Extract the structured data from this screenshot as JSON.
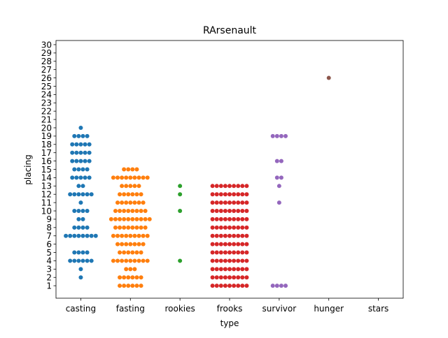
{
  "chart_data": {
    "type": "scatter",
    "subtype": "swarm",
    "title": "RArsenault",
    "xlabel": "type",
    "ylabel": "placing",
    "categories": [
      "casting",
      "fasting",
      "rookies",
      "frooks",
      "survivor",
      "hunger",
      "stars"
    ],
    "ylim": [
      0,
      30
    ],
    "yticks": [
      1,
      2,
      3,
      4,
      5,
      6,
      7,
      8,
      9,
      10,
      11,
      12,
      13,
      14,
      15,
      16,
      17,
      18,
      19,
      20,
      21,
      22,
      23,
      24,
      25,
      26,
      27,
      28,
      29,
      30
    ],
    "grid": false,
    "series": [
      {
        "name": "casting",
        "color": "#1f77b4",
        "points": [
          {
            "y": 2,
            "count": 1
          },
          {
            "y": 3,
            "count": 1
          },
          {
            "y": 4,
            "count": 6
          },
          {
            "y": 5,
            "count": 4
          },
          {
            "y": 7,
            "count": 8
          },
          {
            "y": 8,
            "count": 4
          },
          {
            "y": 9,
            "count": 2
          },
          {
            "y": 10,
            "count": 4
          },
          {
            "y": 11,
            "count": 1
          },
          {
            "y": 12,
            "count": 6
          },
          {
            "y": 13,
            "count": 2
          },
          {
            "y": 14,
            "count": 5
          },
          {
            "y": 15,
            "count": 4
          },
          {
            "y": 16,
            "count": 5
          },
          {
            "y": 17,
            "count": 5
          },
          {
            "y": 18,
            "count": 5
          },
          {
            "y": 19,
            "count": 4
          },
          {
            "y": 20,
            "count": 1
          }
        ]
      },
      {
        "name": "fasting",
        "color": "#ff7f0e",
        "points": [
          {
            "y": 1,
            "count": 6
          },
          {
            "y": 2,
            "count": 6
          },
          {
            "y": 3,
            "count": 3
          },
          {
            "y": 4,
            "count": 9
          },
          {
            "y": 5,
            "count": 6
          },
          {
            "y": 6,
            "count": 7
          },
          {
            "y": 7,
            "count": 9
          },
          {
            "y": 8,
            "count": 8
          },
          {
            "y": 9,
            "count": 10
          },
          {
            "y": 10,
            "count": 8
          },
          {
            "y": 11,
            "count": 7
          },
          {
            "y": 12,
            "count": 6
          },
          {
            "y": 13,
            "count": 5
          },
          {
            "y": 14,
            "count": 9
          },
          {
            "y": 15,
            "count": 4
          }
        ]
      },
      {
        "name": "rookies",
        "color": "#2ca02c",
        "points": [
          {
            "y": 4,
            "count": 1
          },
          {
            "y": 10,
            "count": 1
          },
          {
            "y": 12,
            "count": 1
          },
          {
            "y": 13,
            "count": 1
          }
        ]
      },
      {
        "name": "frooks",
        "color": "#d62728",
        "points": [
          {
            "y": 1,
            "count": 9
          },
          {
            "y": 2,
            "count": 9
          },
          {
            "y": 3,
            "count": 9
          },
          {
            "y": 4,
            "count": 9
          },
          {
            "y": 5,
            "count": 9
          },
          {
            "y": 6,
            "count": 9
          },
          {
            "y": 7,
            "count": 9
          },
          {
            "y": 8,
            "count": 9
          },
          {
            "y": 9,
            "count": 9
          },
          {
            "y": 10,
            "count": 9
          },
          {
            "y": 11,
            "count": 9
          },
          {
            "y": 12,
            "count": 9
          },
          {
            "y": 13,
            "count": 9
          }
        ]
      },
      {
        "name": "survivor",
        "color": "#9467bd",
        "points": [
          {
            "y": 1,
            "count": 4
          },
          {
            "y": 11,
            "count": 1
          },
          {
            "y": 13,
            "count": 1
          },
          {
            "y": 14,
            "count": 2
          },
          {
            "y": 16,
            "count": 2
          },
          {
            "y": 19,
            "count": 4
          }
        ]
      },
      {
        "name": "hunger",
        "color": "#8c564b",
        "points": [
          {
            "y": 26,
            "count": 1
          }
        ]
      },
      {
        "name": "stars",
        "color": "#e377c2",
        "points": []
      }
    ]
  }
}
